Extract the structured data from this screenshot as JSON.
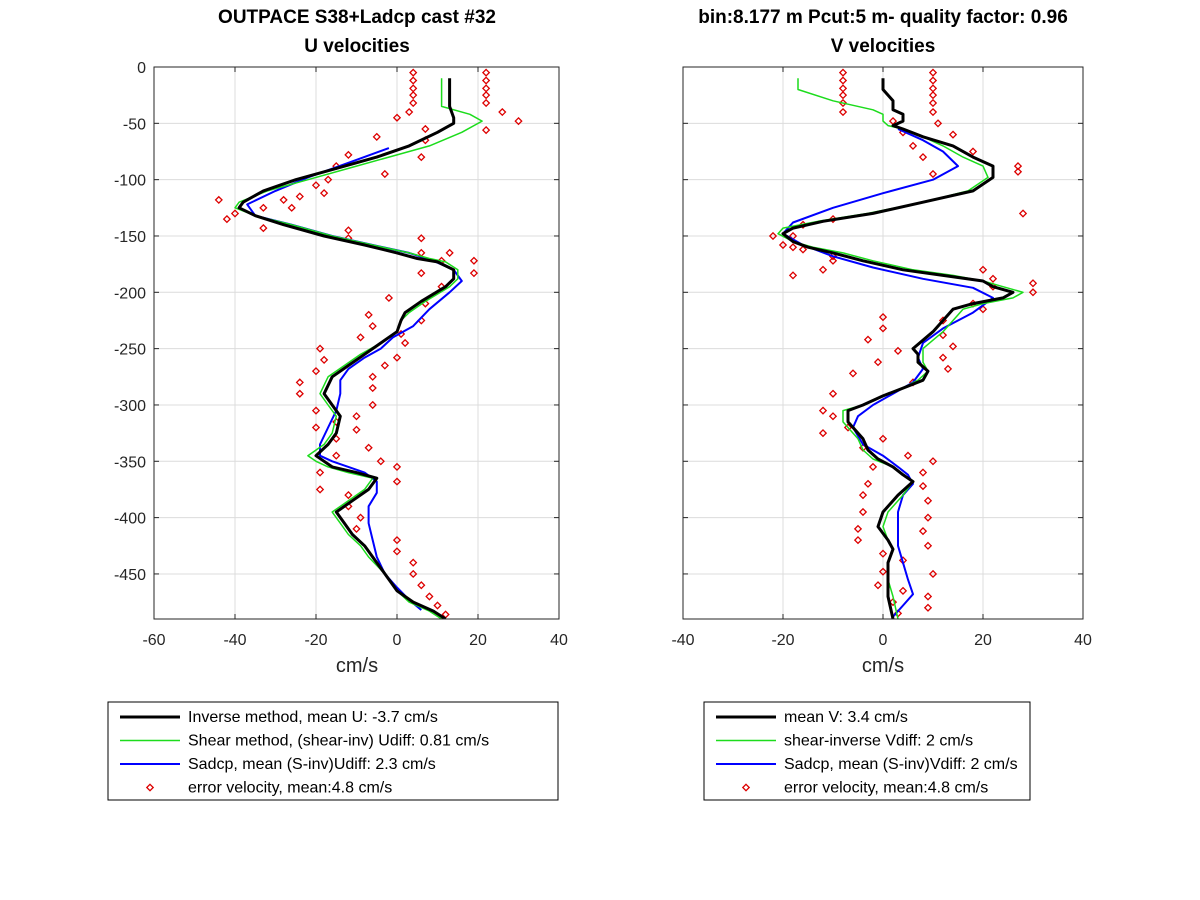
{
  "chart_data": [
    {
      "type": "line",
      "title": "OUTPACE S38+Ladcp cast #32",
      "subtitle": "U velocities",
      "xlabel": "cm/s",
      "ylabel": "",
      "xlim": [
        -60,
        40
      ],
      "ylim": [
        -490,
        0
      ],
      "xticks": [
        -60,
        -40,
        -20,
        0,
        20,
        40
      ],
      "yticks": [
        0,
        -50,
        -100,
        -150,
        -200,
        -250,
        -300,
        -350,
        -400,
        -450
      ],
      "grid": true,
      "legend_position": "below",
      "series": [
        {
          "name": "Inverse method, mean U:  -3.7 cm/s",
          "color": "#000000",
          "style": "line",
          "width": 3,
          "x": [
            13,
            13,
            13,
            14,
            14,
            10,
            3,
            -5,
            -15,
            -25,
            -33,
            -38,
            -39,
            -35,
            -28,
            -18,
            -8,
            0,
            5,
            10,
            14,
            14,
            12,
            6,
            2,
            1,
            0,
            -4,
            -8,
            -12,
            -16,
            -18,
            -16,
            -14,
            -15,
            -17,
            -20,
            -18,
            -16,
            -10,
            -5,
            -7,
            -11,
            -15,
            -13,
            -11,
            -8,
            -6,
            -3,
            0,
            4,
            9,
            12
          ],
          "y": [
            -10,
            -20,
            -35,
            -45,
            -50,
            -58,
            -70,
            -80,
            -90,
            -100,
            -110,
            -120,
            -125,
            -132,
            -140,
            -150,
            -158,
            -165,
            -170,
            -173,
            -180,
            -188,
            -195,
            -208,
            -218,
            -225,
            -235,
            -245,
            -255,
            -265,
            -275,
            -290,
            -300,
            -310,
            -325,
            -335,
            -345,
            -350,
            -355,
            -360,
            -365,
            -375,
            -385,
            -395,
            -405,
            -415,
            -425,
            -435,
            -450,
            -465,
            -475,
            -483,
            -490
          ]
        },
        {
          "name": "Shear method, (shear-inv)  Udiff:  0.81 cm/s",
          "color": "#1cdc1c",
          "style": "line",
          "width": 1.5,
          "x": [
            11,
            11,
            11,
            18,
            21,
            16,
            8,
            -2,
            -12,
            -22,
            -32,
            -39,
            -40,
            -35,
            -26,
            -16,
            -6,
            3,
            8,
            12,
            15,
            15,
            13,
            7,
            3,
            1,
            0,
            -4,
            -9,
            -13,
            -17,
            -19,
            -17,
            -15,
            -16,
            -18,
            -22,
            -20,
            -17,
            -12,
            -6,
            -8,
            -12,
            -16,
            -14,
            -12,
            -9,
            -7,
            -3,
            0,
            3,
            8,
            11
          ],
          "y": [
            -10,
            -20,
            -35,
            -42,
            -48,
            -58,
            -70,
            -80,
            -90,
            -100,
            -110,
            -120,
            -125,
            -132,
            -140,
            -150,
            -158,
            -165,
            -170,
            -173,
            -180,
            -188,
            -195,
            -208,
            -218,
            -225,
            -235,
            -245,
            -255,
            -265,
            -275,
            -290,
            -300,
            -310,
            -325,
            -335,
            -345,
            -350,
            -355,
            -360,
            -365,
            -375,
            -385,
            -395,
            -405,
            -415,
            -425,
            -435,
            -450,
            -465,
            -475,
            -483,
            -490
          ]
        },
        {
          "name": "Sadcp, mean (S-inv)Udiff: 2.3 cm/s",
          "color": "#0000ff",
          "style": "line",
          "width": 2,
          "x": [
            -2,
            -12,
            -22,
            -30,
            -37,
            -35,
            -26,
            -16,
            -6,
            3,
            9,
            14,
            16,
            13,
            8,
            4,
            -1,
            -4,
            -8,
            -12,
            -14,
            -14,
            -15,
            -17,
            -19,
            -19,
            -16,
            -12,
            -8,
            -5,
            -5,
            -7,
            -7,
            -6,
            -5,
            -3,
            0,
            3,
            6
          ],
          "y": [
            -72,
            -85,
            -98,
            -110,
            -122,
            -132,
            -140,
            -150,
            -158,
            -165,
            -172,
            -180,
            -190,
            -200,
            -215,
            -230,
            -240,
            -250,
            -258,
            -268,
            -278,
            -290,
            -305,
            -320,
            -335,
            -345,
            -350,
            -355,
            -360,
            -368,
            -378,
            -390,
            -405,
            -420,
            -435,
            -450,
            -462,
            -473,
            -482
          ]
        },
        {
          "name": "error velocity, mean:4.8 cm/s",
          "color": "#dd0000",
          "style": "markers",
          "x": [
            4,
            22,
            4,
            22,
            4,
            22,
            4,
            22,
            4,
            22,
            3,
            26,
            0,
            30,
            7,
            22,
            -5,
            7,
            -12,
            6,
            -15,
            -3,
            -17,
            -20,
            -18,
            -24,
            -28,
            -33,
            -40,
            -44,
            -42,
            -26,
            -33,
            -12,
            -12,
            6,
            6,
            13,
            11,
            19,
            19,
            6,
            11,
            -2,
            7,
            -7,
            6,
            -6,
            1,
            -9,
            2,
            -19,
            0,
            -18,
            -3,
            -20,
            -6,
            -24,
            -6,
            -24,
            -6,
            -20,
            -10,
            -15,
            -20,
            -10,
            -15,
            -7,
            -15,
            -4,
            0,
            -19,
            0,
            -19,
            -12,
            -12,
            -9,
            -10,
            0,
            0,
            4,
            4,
            6,
            8,
            10,
            12
          ],
          "y": [
            -5,
            -5,
            -12,
            -12,
            -19,
            -19,
            -25,
            -25,
            -32,
            -32,
            -40,
            -40,
            -45,
            -48,
            -55,
            -56,
            -62,
            -65,
            -78,
            -80,
            -88,
            -95,
            -100,
            -105,
            -112,
            -115,
            -118,
            -125,
            -130,
            -118,
            -135,
            -125,
            -143,
            -145,
            -152,
            -152,
            -165,
            -165,
            -172,
            -172,
            -183,
            -183,
            -195,
            -205,
            -210,
            -220,
            -225,
            -230,
            -237,
            -240,
            -245,
            -250,
            -258,
            -260,
            -265,
            -270,
            -275,
            -280,
            -285,
            -290,
            -300,
            -305,
            -310,
            -315,
            -320,
            -322,
            -330,
            -338,
            -345,
            -350,
            -355,
            -360,
            -368,
            -375,
            -380,
            -390,
            -400,
            -410,
            -420,
            -430,
            -440,
            -450,
            -460,
            -470,
            -478,
            -486
          ]
        }
      ]
    },
    {
      "type": "line",
      "title": "bin:8.177 m  Pcut:5 m- quality factor:  0.96",
      "subtitle": "V velocities",
      "xlabel": "cm/s",
      "ylabel": "",
      "xlim": [
        -40,
        40
      ],
      "ylim": [
        -490,
        0
      ],
      "xticks": [
        -40,
        -20,
        0,
        20,
        40
      ],
      "yticks": [
        0,
        -50,
        -100,
        -150,
        -200,
        -250,
        -300,
        -350,
        -400,
        -450
      ],
      "grid": true,
      "legend_position": "below",
      "series": [
        {
          "name": "mean V:  3.4 cm/s",
          "color": "#000000",
          "style": "line",
          "width": 3,
          "x": [
            0,
            0,
            2,
            2,
            4,
            4,
            2,
            4,
            8,
            14,
            18,
            22,
            22,
            18,
            8,
            -2,
            -12,
            -18,
            -20,
            -18,
            -15,
            -10,
            -4,
            4,
            12,
            20,
            22,
            26,
            24,
            18,
            14,
            10,
            6,
            7,
            7,
            9,
            8,
            4,
            0,
            -4,
            -7,
            -7,
            -4,
            -3,
            -1,
            2,
            4,
            6,
            3,
            0,
            -1,
            1,
            2,
            1,
            1,
            1,
            2
          ],
          "y": [
            -10,
            -20,
            -30,
            -38,
            -42,
            -48,
            -52,
            -55,
            -62,
            -70,
            -80,
            -88,
            -98,
            -110,
            -120,
            -130,
            -137,
            -143,
            -148,
            -155,
            -160,
            -165,
            -172,
            -180,
            -185,
            -190,
            -195,
            -200,
            -205,
            -210,
            -215,
            -235,
            -250,
            -255,
            -262,
            -270,
            -278,
            -285,
            -292,
            -300,
            -305,
            -315,
            -330,
            -340,
            -348,
            -355,
            -362,
            -368,
            -380,
            -395,
            -408,
            -420,
            -428,
            -440,
            -455,
            -470,
            -490
          ]
        },
        {
          "name": "shear-inverse Vdiff:  2 cm/s",
          "color": "#1cdc1c",
          "style": "line",
          "width": 1.5,
          "x": [
            -17,
            -17,
            -10,
            -2,
            0,
            0,
            1,
            4,
            8,
            12,
            16,
            20,
            21,
            17,
            8,
            -3,
            -13,
            -20,
            -21,
            -18,
            -14,
            -8,
            -2,
            6,
            14,
            20,
            24,
            28,
            26,
            20,
            16,
            12,
            8,
            8,
            8,
            9,
            7,
            4,
            0,
            -4,
            -8,
            -8,
            -5,
            -4,
            -2,
            2,
            4,
            6,
            4,
            1,
            0,
            1,
            2,
            1,
            1,
            2,
            3
          ],
          "y": [
            -10,
            -20,
            -30,
            -38,
            -42,
            -48,
            -52,
            -55,
            -62,
            -70,
            -80,
            -88,
            -98,
            -110,
            -120,
            -130,
            -137,
            -143,
            -148,
            -155,
            -160,
            -165,
            -172,
            -180,
            -185,
            -190,
            -195,
            -200,
            -205,
            -210,
            -215,
            -235,
            -250,
            -255,
            -262,
            -270,
            -278,
            -285,
            -292,
            -300,
            -305,
            -315,
            -330,
            -340,
            -348,
            -355,
            -362,
            -368,
            -380,
            -395,
            -408,
            -420,
            -428,
            -440,
            -455,
            -470,
            -490
          ]
        },
        {
          "name": "Sadcp, mean (S-inv)Vdiff: 2 cm/s",
          "color": "#0000ff",
          "style": "line",
          "width": 2,
          "x": [
            3,
            8,
            12,
            15,
            10,
            0,
            -10,
            -18,
            -20,
            -16,
            -10,
            -2,
            8,
            18,
            22,
            18,
            12,
            8,
            7,
            8,
            6,
            2,
            -2,
            -5,
            -6,
            -4,
            0,
            3,
            5,
            6,
            4,
            3,
            3,
            3,
            4,
            5,
            6,
            4,
            2
          ],
          "y": [
            -55,
            -65,
            -75,
            -88,
            -100,
            -112,
            -125,
            -138,
            -148,
            -158,
            -168,
            -178,
            -188,
            -196,
            -205,
            -218,
            -232,
            -245,
            -258,
            -268,
            -280,
            -290,
            -300,
            -310,
            -320,
            -335,
            -345,
            -355,
            -362,
            -370,
            -380,
            -395,
            -410,
            -425,
            -440,
            -455,
            -468,
            -478,
            -488
          ]
        },
        {
          "name": "error velocity, mean:4.8 cm/s",
          "color": "#dd0000",
          "style": "markers",
          "x": [
            -8,
            10,
            -8,
            10,
            -8,
            10,
            -8,
            10,
            -8,
            10,
            -8,
            10,
            2,
            11,
            4,
            14,
            6,
            18,
            8,
            27,
            10,
            27,
            -10,
            28,
            -16,
            -22,
            -18,
            -20,
            -18,
            -16,
            -10,
            -10,
            -12,
            -18,
            20,
            22,
            22,
            30,
            30,
            18,
            20,
            0,
            12,
            0,
            12,
            -3,
            14,
            3,
            12,
            -1,
            13,
            -6,
            6,
            -10,
            -12,
            -10,
            -7,
            -12,
            0,
            -4,
            5,
            10,
            -2,
            8,
            -3,
            8,
            -4,
            9,
            -4,
            9,
            -5,
            8,
            -5,
            9,
            0,
            4,
            0,
            10,
            -1,
            4,
            9,
            2,
            9,
            3
          ],
          "y": [
            -5,
            -5,
            -12,
            -12,
            -19,
            -19,
            -25,
            -25,
            -32,
            -32,
            -40,
            -40,
            -48,
            -50,
            -58,
            -60,
            -70,
            -75,
            -80,
            -88,
            -95,
            -93,
            -135,
            -130,
            -140,
            -150,
            -150,
            -158,
            -160,
            -162,
            -168,
            -172,
            -180,
            -185,
            -180,
            -188,
            -195,
            -192,
            -200,
            -210,
            -215,
            -222,
            -225,
            -232,
            -238,
            -242,
            -248,
            -252,
            -258,
            -262,
            -268,
            -272,
            -280,
            -290,
            -305,
            -310,
            -320,
            -325,
            -330,
            -338,
            -345,
            -350,
            -355,
            -360,
            -370,
            -372,
            -380,
            -385,
            -395,
            -400,
            -410,
            -412,
            -420,
            -425,
            -432,
            -438,
            -448,
            -450,
            -460,
            -465,
            -470,
            -475,
            -480,
            -485
          ]
        }
      ]
    }
  ]
}
